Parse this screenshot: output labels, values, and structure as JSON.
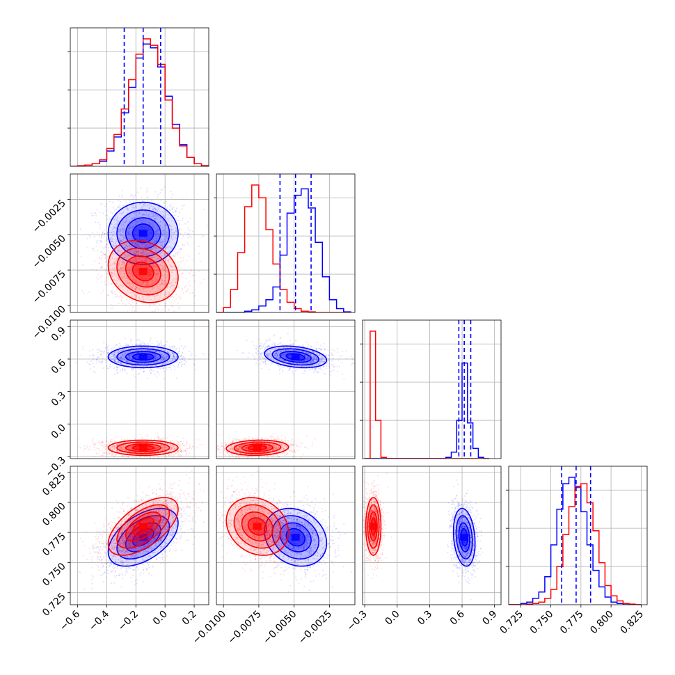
{
  "chart_data": {
    "type": "corner",
    "title": "",
    "grid": true,
    "parameters": [
      {
        "range": [
          -0.65,
          0.3
        ],
        "ticks": [
          -0.6,
          -0.4,
          -0.2,
          0.0,
          0.2
        ],
        "tick_labels": [
          "−0.6",
          "−0.4",
          "−0.2",
          "0.0",
          "0.2"
        ]
      },
      {
        "range": [
          -0.0105,
          -0.0007
        ],
        "ticks": [
          -0.01,
          -0.0075,
          -0.005,
          -0.0025
        ],
        "tick_labels": [
          "−0.0100",
          "−0.0075",
          "−0.0050",
          "−0.0025"
        ]
      },
      {
        "range": [
          -0.32,
          0.96
        ],
        "ticks": [
          -0.3,
          0.0,
          0.3,
          0.6,
          0.9
        ],
        "tick_labels": [
          "−0.3",
          "0.0",
          "0.3",
          "0.6",
          "0.9"
        ]
      },
      {
        "range": [
          0.715,
          0.83
        ],
        "ticks": [
          0.725,
          0.75,
          0.775,
          0.8,
          0.825
        ],
        "tick_labels": [
          "0.725",
          "0.750",
          "0.775",
          "0.800",
          "0.825"
        ]
      }
    ],
    "colors": {
      "series_a": "#0000ff",
      "series_b": "#ff0000",
      "grid": "#b0b0b0"
    },
    "series": [
      {
        "color": "#0000ff",
        "means": [
          -0.15,
          -0.0049,
          0.62,
          0.771
        ],
        "sigmas": [
          0.12,
          0.0011,
          0.05,
          0.012
        ],
        "quantiles": [
          [
            -0.28,
            -0.15,
            -0.03
          ],
          [
            -0.006,
            -0.0049,
            -0.0038
          ],
          [
            0.57,
            0.62,
            0.68
          ],
          [
            0.759,
            0.771,
            0.783
          ]
        ],
        "correlations": {
          "0-1": 0.0,
          "0-2": 0.0,
          "0-3": 0.5,
          "1-2": -0.3,
          "1-3": -0.2,
          "2-3": -0.2
        }
      },
      {
        "color": "#ff0000",
        "means": [
          -0.15,
          -0.0076,
          -0.22,
          0.78
        ],
        "sigmas": [
          0.12,
          0.0011,
          0.035,
          0.012
        ],
        "quantiles": [],
        "correlations": {
          "0-1": -0.2,
          "0-2": 0.0,
          "0-3": 0.6,
          "1-2": 0.1,
          "1-3": -0.2,
          "2-3": 0.0
        }
      }
    ],
    "histograms": {
      "diag0": {
        "edges": [
          -0.65,
          -0.6,
          -0.55,
          -0.5,
          -0.45,
          -0.4,
          -0.35,
          -0.3,
          -0.25,
          -0.2,
          -0.15,
          -0.1,
          -0.05,
          0.0,
          0.05,
          0.1,
          0.15,
          0.2,
          0.25,
          0.3
        ],
        "blue": [
          0,
          0,
          0.01,
          0.02,
          0.04,
          0.12,
          0.23,
          0.42,
          0.62,
          0.85,
          0.96,
          0.93,
          0.78,
          0.55,
          0.33,
          0.17,
          0.07,
          0.02,
          0.005
        ],
        "red": [
          0,
          0.005,
          0.01,
          0.02,
          0.05,
          0.14,
          0.25,
          0.45,
          0.68,
          0.88,
          1.0,
          0.95,
          0.8,
          0.52,
          0.3,
          0.16,
          0.07,
          0.02,
          0.005
        ]
      },
      "diag1": {
        "edges": [
          -0.0105,
          -0.01,
          -0.0095,
          -0.009,
          -0.0085,
          -0.008,
          -0.0075,
          -0.007,
          -0.0065,
          -0.006,
          -0.0055,
          -0.005,
          -0.0045,
          -0.004,
          -0.0035,
          -0.003,
          -0.0025,
          -0.002,
          -0.0015,
          -0.001
        ],
        "blue": [
          0,
          0,
          0,
          0,
          0.01,
          0.02,
          0.05,
          0.1,
          0.2,
          0.45,
          0.78,
          0.92,
          0.97,
          0.82,
          0.55,
          0.28,
          0.1,
          0.03,
          0.005
        ],
        "red": [
          0,
          0.04,
          0.18,
          0.47,
          0.83,
          1.0,
          0.9,
          0.65,
          0.38,
          0.18,
          0.08,
          0.03,
          0.01,
          0.005,
          0,
          0,
          0,
          0,
          0
        ]
      },
      "diag2": {
        "edges": [
          -0.3,
          -0.25,
          -0.2,
          -0.15,
          -0.1,
          -0.05,
          0.0,
          0.05,
          0.1,
          0.15,
          0.2,
          0.25,
          0.3,
          0.35,
          0.4,
          0.45,
          0.5,
          0.55,
          0.6,
          0.65,
          0.7,
          0.75,
          0.8,
          0.85
        ],
        "blue": [
          0,
          0,
          0,
          0,
          0,
          0,
          0,
          0,
          0,
          0,
          0,
          0,
          0,
          0,
          0,
          0.01,
          0.05,
          0.3,
          0.75,
          0.28,
          0.08,
          0.01,
          0
        ],
        "red": [
          0,
          1.0,
          0.3,
          0.01,
          0,
          0,
          0,
          0,
          0,
          0,
          0,
          0,
          0,
          0,
          0,
          0,
          0,
          0,
          0,
          0,
          0,
          0,
          0
        ]
      },
      "diag3": {
        "edges": [
          0.715,
          0.72,
          0.725,
          0.73,
          0.735,
          0.74,
          0.745,
          0.75,
          0.755,
          0.76,
          0.765,
          0.77,
          0.775,
          0.78,
          0.785,
          0.79,
          0.795,
          0.8,
          0.805,
          0.81,
          0.815,
          0.82,
          0.825
        ],
        "blue": [
          0,
          0,
          0.01,
          0.02,
          0.05,
          0.1,
          0.22,
          0.47,
          0.75,
          0.95,
          1.0,
          0.93,
          0.73,
          0.47,
          0.27,
          0.14,
          0.06,
          0.02,
          0.01,
          0,
          0,
          0
        ],
        "red": [
          0,
          0,
          0,
          0.005,
          0.01,
          0.02,
          0.05,
          0.12,
          0.3,
          0.55,
          0.77,
          0.92,
          0.95,
          0.8,
          0.58,
          0.33,
          0.15,
          0.07,
          0.03,
          0.01,
          0.005,
          0
        ]
      }
    }
  }
}
